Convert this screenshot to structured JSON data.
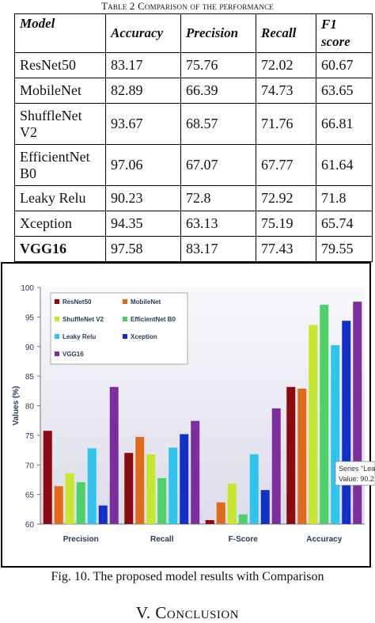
{
  "table_caption": {
    "prefix": "Table 2 ",
    "text": "Comparison of the performance"
  },
  "table": {
    "headers": [
      "Model",
      "Accuracy",
      "Precision",
      "Recall",
      "F1 score"
    ],
    "rows": [
      {
        "model": "ResNet50",
        "accuracy": "83.17",
        "precision": "75.76",
        "recall": "72.02",
        "f1": "60.67"
      },
      {
        "model": "MobileNet",
        "accuracy": "82.89",
        "precision": "66.39",
        "recall": "74.73",
        "f1": "63.65"
      },
      {
        "model": "ShuffleNet V2",
        "accuracy": "93.67",
        "precision": "68.57",
        "recall": "71.76",
        "f1": "66.81"
      },
      {
        "model": "EfficientNet B0",
        "accuracy": "97.06",
        "precision": "67.07",
        "recall": "67.77",
        "f1": "61.64"
      },
      {
        "model": "Leaky Relu",
        "accuracy": "90.23",
        "precision": "72.8",
        "recall": "72.92",
        "f1": "71.8"
      },
      {
        "model": "Xception",
        "accuracy": "94.35",
        "precision": "63.13",
        "recall": "75.19",
        "f1": "65.74"
      },
      {
        "model": "VGG16",
        "accuracy": "97.58",
        "precision": "83.17",
        "recall": "77.43",
        "f1": "79.55"
      }
    ]
  },
  "chart_data": {
    "type": "bar",
    "title": "",
    "xlabel": "",
    "ylabel": "Values (%)",
    "ylim": [
      60,
      100
    ],
    "yticks": [
      60,
      65,
      70,
      75,
      80,
      85,
      90,
      95,
      100
    ],
    "categories": [
      "Precision",
      "Recall",
      "F-Score",
      "Accuracy"
    ],
    "series": [
      {
        "name": "ResNet50",
        "color": "#8B0A0F",
        "values": [
          75.76,
          72.02,
          60.67,
          83.17
        ]
      },
      {
        "name": "MobileNet",
        "color": "#E06A1C",
        "values": [
          66.39,
          74.73,
          63.65,
          82.89
        ]
      },
      {
        "name": "ShuffleNet V2",
        "color": "#C7E62E",
        "values": [
          68.57,
          71.76,
          66.81,
          93.67
        ]
      },
      {
        "name": "EfficientNet B0",
        "color": "#4FD16A",
        "values": [
          67.07,
          67.77,
          61.64,
          97.06
        ]
      },
      {
        "name": "Leaky Relu",
        "color": "#2EC4EE",
        "values": [
          72.8,
          72.92,
          71.8,
          90.23
        ]
      },
      {
        "name": "Xception",
        "color": "#1230C8",
        "values": [
          63.13,
          75.19,
          65.74,
          94.35
        ]
      },
      {
        "name": "VGG16",
        "color": "#7B2F9E",
        "values": [
          83.17,
          77.43,
          79.55,
          97.58
        ]
      }
    ],
    "legend_position": "top-left",
    "grid": false,
    "tooltip": {
      "line1": "Series \"Lea",
      "line2": "Value: 90.2"
    }
  },
  "figure_caption": "Fig. 10. The proposed model results with Comparison",
  "section": {
    "number": "V. ",
    "title": "Conclusion"
  }
}
